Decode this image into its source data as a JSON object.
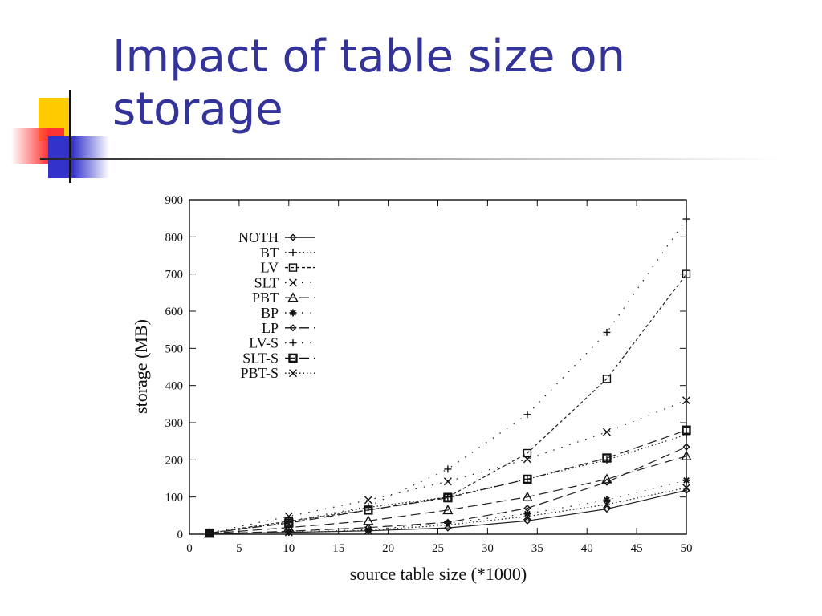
{
  "slide": {
    "title_line1": "Impact of table size on",
    "title_line2": "storage"
  },
  "chart_data": {
    "type": "line",
    "title": "",
    "xlabel": "source table size (*1000)",
    "ylabel": "storage (MB)",
    "xlim": [
      0,
      50
    ],
    "ylim": [
      0,
      900
    ],
    "xticks": [
      0,
      5,
      10,
      15,
      20,
      25,
      30,
      35,
      40,
      45,
      50
    ],
    "yticks": [
      0,
      100,
      200,
      300,
      400,
      500,
      600,
      700,
      800,
      900
    ],
    "legend_position": "top-left",
    "grid": false,
    "x": [
      2,
      10,
      18,
      26,
      34,
      42,
      50
    ],
    "series": [
      {
        "name": "NOTH",
        "marker": "diamond",
        "dash": "solid",
        "values": [
          1,
          5,
          9,
          17,
          36,
          68,
          118
        ]
      },
      {
        "name": "BT",
        "marker": "plus",
        "dash": "dotted",
        "values": [
          3,
          32,
          72,
          100,
          148,
          200,
          268
        ]
      },
      {
        "name": "LV",
        "marker": "square",
        "dash": "dashed",
        "values": [
          3,
          35,
          65,
          100,
          218,
          418,
          700
        ]
      },
      {
        "name": "SLT",
        "marker": "x",
        "dash": "sparsedot",
        "values": [
          4,
          48,
          92,
          142,
          202,
          275,
          360
        ]
      },
      {
        "name": "PBT",
        "marker": "triangle",
        "dash": "longdash",
        "values": [
          2,
          18,
          36,
          65,
          100,
          148,
          210
        ]
      },
      {
        "name": "BP",
        "marker": "star",
        "dash": "sparsedot",
        "values": [
          1,
          6,
          12,
          30,
          55,
          92,
          145
        ]
      },
      {
        "name": "LP",
        "marker": "diamond-open",
        "dash": "longdash",
        "values": [
          1,
          8,
          18,
          32,
          70,
          140,
          235
        ]
      },
      {
        "name": "LV-S",
        "marker": "plus",
        "dash": "sparsedot",
        "values": [
          4,
          35,
          75,
          175,
          322,
          543,
          848
        ]
      },
      {
        "name": "SLT-S",
        "marker": "square-bold",
        "dash": "longdash",
        "values": [
          3,
          30,
          65,
          98,
          148,
          205,
          280
        ]
      },
      {
        "name": "PBT-S",
        "marker": "x",
        "dash": "dotted",
        "values": [
          1,
          5,
          10,
          25,
          48,
          80,
          125
        ]
      }
    ]
  }
}
